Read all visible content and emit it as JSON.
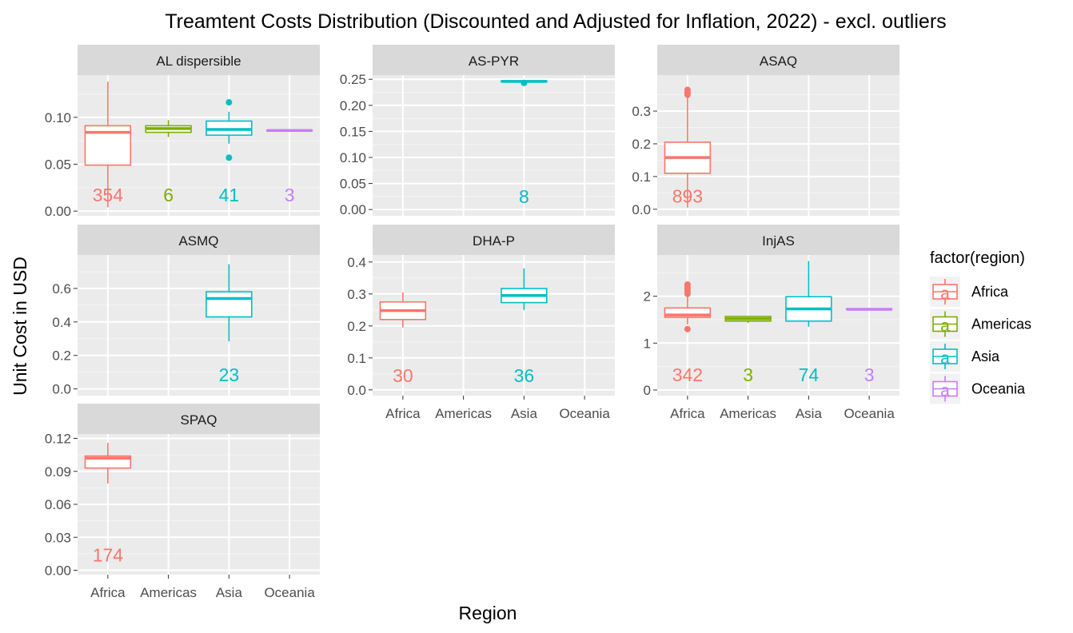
{
  "chart_data": {
    "type": "boxplot",
    "title": "Treamtent Costs Distribution (Discounted and Adjusted for Inflation, 2022) - excl. outliers",
    "xlabel": "Region",
    "ylabel": "Unit Cost in USD",
    "categories": [
      "Africa",
      "Americas",
      "Asia",
      "Oceania"
    ],
    "legend": {
      "title": "factor(region)",
      "position": "right",
      "key_glyph": "a",
      "items": [
        {
          "name": "Africa",
          "color": "#F8766D"
        },
        {
          "name": "Americas",
          "color": "#7CAE00"
        },
        {
          "name": "Asia",
          "color": "#00BFC4"
        },
        {
          "name": "Oceania",
          "color": "#C77CFF"
        }
      ]
    },
    "panels": [
      {
        "name": "AL dispersible",
        "ylim": [
          -0.005,
          0.145
        ],
        "yticks": [
          0.0,
          0.05,
          0.1
        ],
        "ytick_labels": [
          "0.00",
          "0.05",
          "0.10"
        ],
        "count_label_y": 0.017,
        "boxes": [
          {
            "region": "Africa",
            "count": "354",
            "min": 0.004,
            "q1": 0.049,
            "median": 0.084,
            "q3": 0.091,
            "max": 0.138,
            "outliers": []
          },
          {
            "region": "Americas",
            "count": "6",
            "min": 0.079,
            "q1": 0.084,
            "median": 0.088,
            "q3": 0.091,
            "max": 0.097,
            "outliers": []
          },
          {
            "region": "Asia",
            "count": "41",
            "min": 0.072,
            "q1": 0.081,
            "median": 0.087,
            "q3": 0.096,
            "max": 0.106,
            "outliers": [
              0.116,
              0.057
            ]
          },
          {
            "region": "Oceania",
            "count": "3",
            "min": 0.086,
            "q1": 0.086,
            "median": 0.086,
            "q3": 0.086,
            "max": 0.086,
            "outliers": []
          }
        ]
      },
      {
        "name": "AS-PYR",
        "ylim": [
          -0.012,
          0.258
        ],
        "yticks": [
          0.0,
          0.05,
          0.1,
          0.15,
          0.2,
          0.25
        ],
        "ytick_labels": [
          "0.00",
          "0.05",
          "0.10",
          "0.15",
          "0.20",
          "0.25"
        ],
        "count_label_y": 0.025,
        "boxes": [
          {
            "region": "Asia",
            "count": "8",
            "min": 0.244,
            "q1": 0.245,
            "median": 0.246,
            "q3": 0.247,
            "max": 0.247,
            "outliers": [
              0.243
            ]
          }
        ]
      },
      {
        "name": "ASAQ",
        "ylim": [
          -0.02,
          0.41
        ],
        "yticks": [
          0.0,
          0.1,
          0.2,
          0.3
        ],
        "ytick_labels": [
          "0.0",
          "0.1",
          "0.2",
          "0.3"
        ],
        "count_label_y": 0.04,
        "boxes": [
          {
            "region": "Africa",
            "count": "893",
            "min": 0.005,
            "q1": 0.11,
            "median": 0.158,
            "q3": 0.205,
            "max": 0.345,
            "outliers": [
              0.35,
              0.355,
              0.36,
              0.365
            ]
          }
        ]
      },
      {
        "name": "ASMQ",
        "ylim": [
          -0.04,
          0.8
        ],
        "yticks": [
          0.0,
          0.2,
          0.4,
          0.6
        ],
        "ytick_labels": [
          "0.0",
          "0.2",
          "0.4",
          "0.6"
        ],
        "count_label_y": 0.085,
        "boxes": [
          {
            "region": "Asia",
            "count": "23",
            "min": 0.285,
            "q1": 0.43,
            "median": 0.54,
            "q3": 0.58,
            "max": 0.745,
            "outliers": []
          }
        ]
      },
      {
        "name": "DHA-P",
        "ylim": [
          -0.018,
          0.422
        ],
        "yticks": [
          0.0,
          0.1,
          0.2,
          0.3,
          0.4
        ],
        "ytick_labels": [
          "0.0",
          "0.1",
          "0.2",
          "0.3",
          "0.4"
        ],
        "count_label_y": 0.045,
        "boxes": [
          {
            "region": "Africa",
            "count": "30",
            "min": 0.195,
            "q1": 0.22,
            "median": 0.248,
            "q3": 0.275,
            "max": 0.305,
            "outliers": []
          },
          {
            "region": "Asia",
            "count": "36",
            "min": 0.25,
            "q1": 0.273,
            "median": 0.295,
            "q3": 0.317,
            "max": 0.38,
            "outliers": []
          }
        ]
      },
      {
        "name": "InjAS",
        "ylim": [
          -0.12,
          2.88
        ],
        "yticks": [
          0,
          1,
          2
        ],
        "ytick_labels": [
          "0",
          "1",
          "2"
        ],
        "count_label_y": 0.32,
        "boxes": [
          {
            "region": "Africa",
            "count": "342",
            "min": 1.4,
            "q1": 1.55,
            "median": 1.6,
            "q3": 1.75,
            "max": 2.0,
            "outliers": [
              1.3,
              2.05,
              2.1,
              2.15,
              2.2,
              2.25
            ]
          },
          {
            "region": "Americas",
            "count": "3",
            "min": 1.43,
            "q1": 1.47,
            "median": 1.52,
            "q3": 1.57,
            "max": 1.57,
            "outliers": []
          },
          {
            "region": "Asia",
            "count": "74",
            "min": 1.35,
            "q1": 1.47,
            "median": 1.73,
            "q3": 1.99,
            "max": 2.75,
            "outliers": []
          },
          {
            "region": "Oceania",
            "count": "3",
            "min": 1.72,
            "q1": 1.72,
            "median": 1.72,
            "q3": 1.73,
            "max": 1.73,
            "outliers": []
          }
        ]
      },
      {
        "name": "SPAQ",
        "ylim": [
          -0.004,
          0.124
        ],
        "yticks": [
          0.0,
          0.03,
          0.06,
          0.09,
          0.12
        ],
        "ytick_labels": [
          "0.00",
          "0.03",
          "0.06",
          "0.09",
          "0.12"
        ],
        "count_label_y": 0.014,
        "boxes": [
          {
            "region": "Africa",
            "count": "174",
            "min": 0.079,
            "q1": 0.093,
            "median": 0.102,
            "q3": 0.104,
            "max": 0.116,
            "outliers": []
          }
        ]
      }
    ]
  }
}
